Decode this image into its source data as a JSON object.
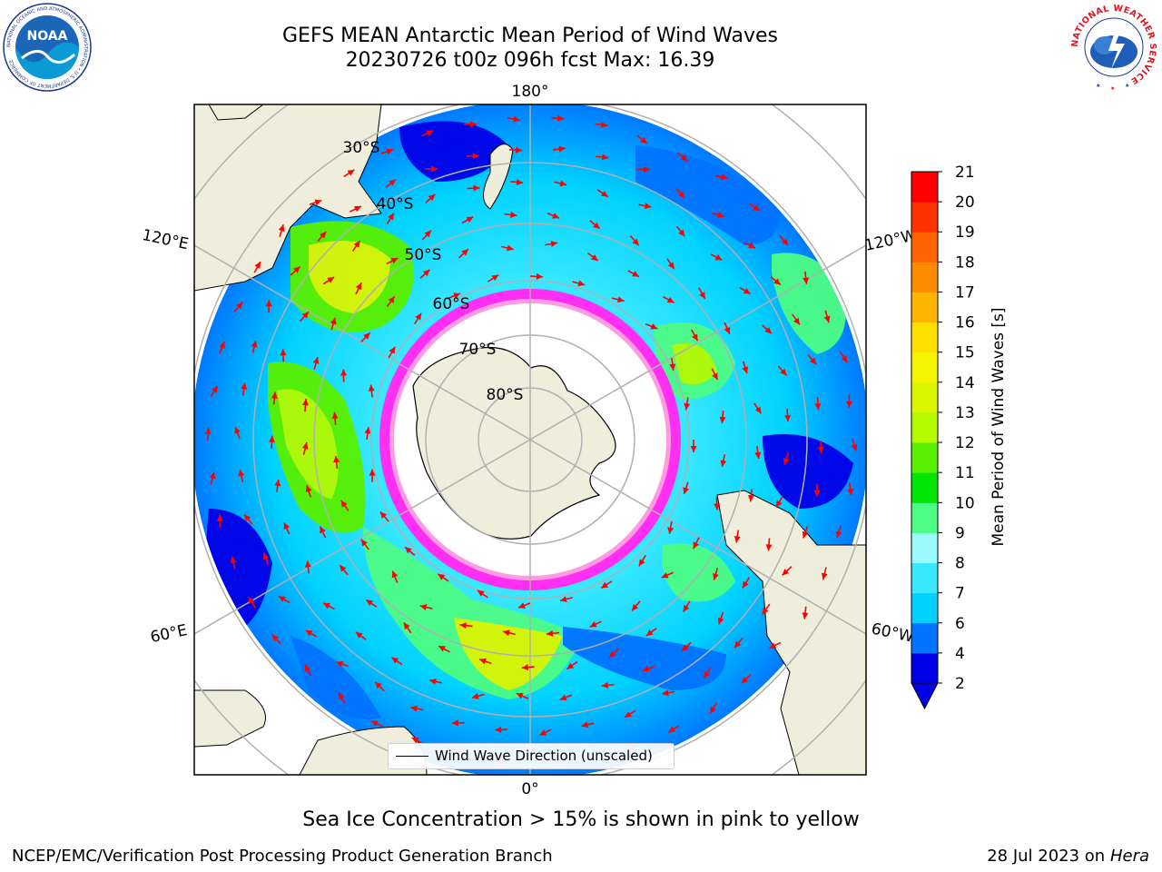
{
  "header": {
    "title_line1": "GEFS MEAN Antarctic Mean Period of Wind Waves",
    "title_line2": "20230726 t00z 096h fcst   Max: 16.39"
  },
  "logos": {
    "left": {
      "name": "NOAA",
      "ring_text": "NATIONAL OCEANIC AND ATMOSPHERIC ADMINISTRATION • U.S. DEPARTMENT OF COMMERCE"
    },
    "right": {
      "name": "National Weather Service",
      "ring_text": "NATIONAL WEATHER SERVICE"
    }
  },
  "map": {
    "projection": "south-polar-stereographic",
    "longitude_labels": {
      "top": "180°",
      "bottom": "0°",
      "left_upper": "120°E",
      "left_lower": "60°E",
      "right_upper": "120°W",
      "right_lower": "60°W"
    },
    "latitude_labels": [
      "30°S",
      "40°S",
      "50°S",
      "60°S",
      "70°S",
      "80°S"
    ],
    "legend_label": "Wind Wave Direction (unscaled)",
    "arrow_color": "#ff0000",
    "land_color": "#efeedc"
  },
  "colorbar": {
    "label": "Mean Period of Wind Waves [s]",
    "ticks": [
      "2",
      "4",
      "6",
      "7",
      "8",
      "9",
      "10",
      "11",
      "12",
      "13",
      "14",
      "15",
      "16",
      "17",
      "18",
      "19",
      "20",
      "21"
    ],
    "colors": [
      "#0000e6",
      "#0073ff",
      "#00d2ff",
      "#39e8ff",
      "#9bfbff",
      "#4dfc84",
      "#00e600",
      "#59f000",
      "#b4fa00",
      "#dcf500",
      "#f5f500",
      "#fee100",
      "#ffb400",
      "#ff8c00",
      "#ff6400",
      "#ff3200",
      "#ff0000"
    ],
    "extend_min_color": "#0000e6"
  },
  "chart_data": {
    "type": "heatmap",
    "variable": "Mean Period of Wind Waves",
    "units": "s",
    "model": "GEFS MEAN",
    "init": "20230726 t00z",
    "forecast_hour": "096h",
    "max": 16.39,
    "colorbar_range": [
      2,
      21
    ],
    "colorbar_extend": "min"
  },
  "footer": {
    "note": "Sea Ice Concentration > 15% is shown in pink to yellow",
    "left": "NCEP/EMC/Verification Post Processing Product Generation Branch",
    "right_prefix": "28 Jul 2023 on ",
    "right_host": "Hera"
  }
}
